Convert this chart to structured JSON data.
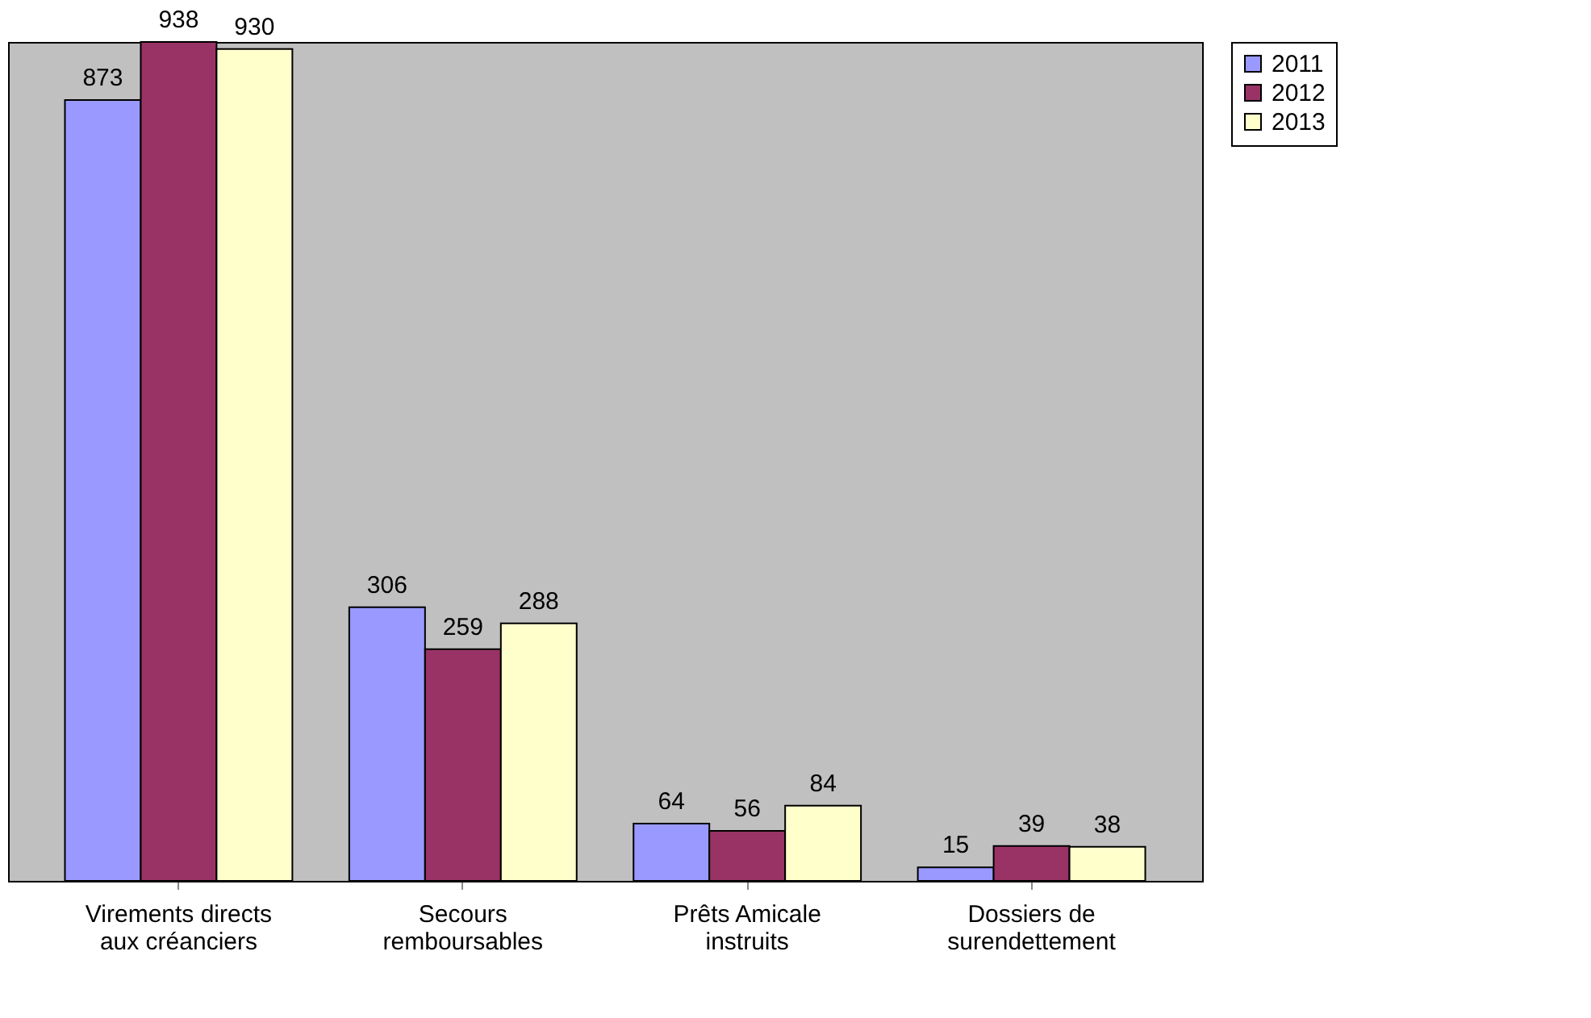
{
  "chart_data": {
    "type": "bar",
    "categories": [
      "Virements directs aux créanciers",
      "Secours remboursables",
      "Prêts Amicale instruits",
      "Dossiers de surendettement"
    ],
    "series": [
      {
        "name": "2011",
        "color": "#9999ff",
        "values": [
          873,
          306,
          64,
          15
        ]
      },
      {
        "name": "2012",
        "color": "#993366",
        "values": [
          938,
          259,
          56,
          39
        ]
      },
      {
        "name": "2013",
        "color": "#ffffcc",
        "values": [
          930,
          288,
          84,
          38
        ]
      }
    ],
    "data_labels": true,
    "legend": "right",
    "grid": false
  }
}
